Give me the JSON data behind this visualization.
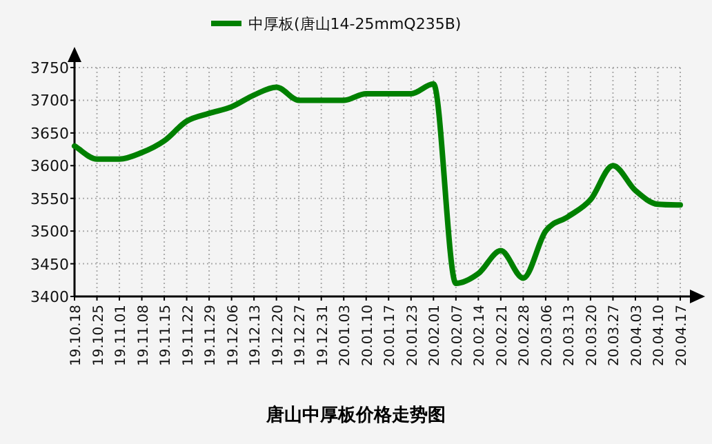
{
  "chart_data": {
    "type": "line",
    "title": "唐山中厚板价格走势图",
    "categories": [
      "19.10.18",
      "19.10.25",
      "19.11.01",
      "19.11.08",
      "19.11.15",
      "19.11.22",
      "19.11.29",
      "19.12.06",
      "19.12.13",
      "19.12.20",
      "19.12.27",
      "19.12.31",
      "20.01.03",
      "20.01.10",
      "20.01.17",
      "20.01.23",
      "20.02.01",
      "20.02.07",
      "20.02.14",
      "20.02.21",
      "20.02.28",
      "20.03.06",
      "20.03.13",
      "20.03.20",
      "20.03.27",
      "20.04.03",
      "20.04.10",
      "20.04.17"
    ],
    "series": [
      {
        "name": "中厚板(唐山14-25mmQ235B)",
        "color": "#008000",
        "values": [
          3630,
          3610,
          3610,
          3620,
          3638,
          3668,
          3680,
          3690,
          3708,
          3720,
          3700,
          3700,
          3700,
          3710,
          3710,
          3710,
          3725,
          3420,
          3435,
          3470,
          3428,
          3500,
          3522,
          3548,
          3600,
          3562,
          3541,
          3540
        ]
      }
    ],
    "ylim": [
      3400,
      3750
    ],
    "yticks": [
      3400,
      3450,
      3500,
      3550,
      3600,
      3650,
      3700,
      3750
    ],
    "grid": true,
    "legend": "top",
    "marker": "none",
    "line_style": "solid"
  }
}
